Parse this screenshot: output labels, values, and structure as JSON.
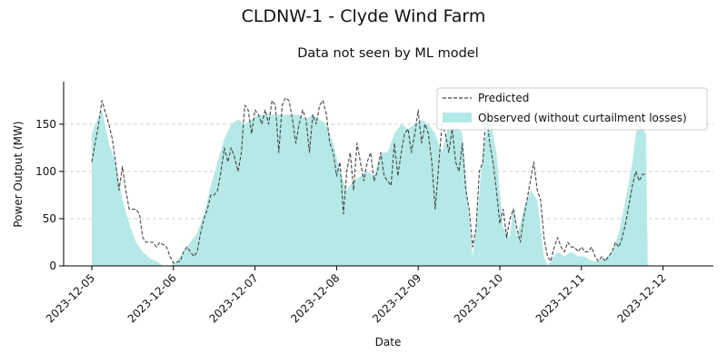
{
  "chart_data": {
    "type": "area",
    "suptitle": "CLDNW-1 - Clyde Wind Farm",
    "title": "Data not seen by ML model",
    "xlabel": "Date",
    "ylabel": "Power Output (MW)",
    "ylim": [
      0,
      195
    ],
    "yticks": [
      0,
      50,
      100,
      150
    ],
    "xticks": [
      "2023-12-05",
      "2023-12-06",
      "2023-12-07",
      "2023-12-08",
      "2023-12-09",
      "2023-12-10",
      "2023-12-11",
      "2023-12-12"
    ],
    "grid": "y, dashed",
    "legend_position": "top-right",
    "series": [
      {
        "name": "Predicted",
        "style": "dashed line",
        "color": "#444444",
        "points": [
          [
            "2023-12-05 00:00",
            110
          ],
          [
            "2023-12-05 02:00",
            150
          ],
          [
            "2023-12-05 03:00",
            175
          ],
          [
            "2023-12-05 05:00",
            150
          ],
          [
            "2023-12-05 06:00",
            135
          ],
          [
            "2023-12-05 07:00",
            110
          ],
          [
            "2023-12-05 08:00",
            80
          ],
          [
            "2023-12-05 09:00",
            105
          ],
          [
            "2023-12-05 10:00",
            80
          ],
          [
            "2023-12-05 11:00",
            60
          ],
          [
            "2023-12-05 12:00",
            60
          ],
          [
            "2023-12-05 13:00",
            60
          ],
          [
            "2023-12-05 14:00",
            55
          ],
          [
            "2023-12-05 15:00",
            30
          ],
          [
            "2023-12-05 16:00",
            25
          ],
          [
            "2023-12-05 18:00",
            25
          ],
          [
            "2023-12-05 19:00",
            20
          ],
          [
            "2023-12-05 20:00",
            25
          ],
          [
            "2023-12-05 22:00",
            20
          ],
          [
            "2023-12-05 23:00",
            10
          ],
          [
            "2023-12-06 00:00",
            3
          ],
          [
            "2023-12-06 02:00",
            5
          ],
          [
            "2023-12-06 03:00",
            15
          ],
          [
            "2023-12-06 04:00",
            20
          ],
          [
            "2023-12-06 05:00",
            15
          ],
          [
            "2023-12-06 06:00",
            10
          ],
          [
            "2023-12-06 07:00",
            15
          ],
          [
            "2023-12-06 08:00",
            35
          ],
          [
            "2023-12-06 09:00",
            50
          ],
          [
            "2023-12-06 10:00",
            60
          ],
          [
            "2023-12-06 11:00",
            75
          ],
          [
            "2023-12-06 12:00",
            75
          ],
          [
            "2023-12-06 13:00",
            80
          ],
          [
            "2023-12-06 14:00",
            100
          ],
          [
            "2023-12-06 15:00",
            125
          ],
          [
            "2023-12-06 16:00",
            110
          ],
          [
            "2023-12-06 17:00",
            125
          ],
          [
            "2023-12-06 18:00",
            115
          ],
          [
            "2023-12-06 19:00",
            100
          ],
          [
            "2023-12-06 20:00",
            120
          ],
          [
            "2023-12-06 21:00",
            170
          ],
          [
            "2023-12-06 22:00",
            165
          ],
          [
            "2023-12-06 23:00",
            140
          ],
          [
            "2023-12-07 00:00",
            165
          ],
          [
            "2023-12-07 01:00",
            160
          ],
          [
            "2023-12-07 02:00",
            150
          ],
          [
            "2023-12-07 03:00",
            165
          ],
          [
            "2023-12-07 04:00",
            150
          ],
          [
            "2023-12-07 05:00",
            175
          ],
          [
            "2023-12-07 06:00",
            170
          ],
          [
            "2023-12-07 07:00",
            120
          ],
          [
            "2023-12-07 08:00",
            170
          ],
          [
            "2023-12-07 09:00",
            178
          ],
          [
            "2023-12-07 10:00",
            175
          ],
          [
            "2023-12-07 11:00",
            155
          ],
          [
            "2023-12-07 12:00",
            130
          ],
          [
            "2023-12-07 13:00",
            150
          ],
          [
            "2023-12-07 14:00",
            165
          ],
          [
            "2023-12-07 15:00",
            155
          ],
          [
            "2023-12-07 16:00",
            120
          ],
          [
            "2023-12-07 17:00",
            160
          ],
          [
            "2023-12-07 18:00",
            150
          ],
          [
            "2023-12-07 19:00",
            170
          ],
          [
            "2023-12-07 20:00",
            175
          ],
          [
            "2023-12-07 21:00",
            160
          ],
          [
            "2023-12-07 22:00",
            130
          ],
          [
            "2023-12-07 23:00",
            120
          ],
          [
            "2023-12-08 00:00",
            95
          ],
          [
            "2023-12-08 01:00",
            110
          ],
          [
            "2023-12-08 02:00",
            55
          ],
          [
            "2023-12-08 03:00",
            100
          ],
          [
            "2023-12-08 04:00",
            120
          ],
          [
            "2023-12-08 05:00",
            80
          ],
          [
            "2023-12-08 06:00",
            130
          ],
          [
            "2023-12-08 07:00",
            110
          ],
          [
            "2023-12-08 08:00",
            90
          ],
          [
            "2023-12-08 09:00",
            110
          ],
          [
            "2023-12-08 10:00",
            120
          ],
          [
            "2023-12-08 11:00",
            90
          ],
          [
            "2023-12-08 12:00",
            100
          ],
          [
            "2023-12-08 13:00",
            120
          ],
          [
            "2023-12-08 14:00",
            95
          ],
          [
            "2023-12-08 15:00",
            90
          ],
          [
            "2023-12-08 16:00",
            85
          ],
          [
            "2023-12-08 17:00",
            130
          ],
          [
            "2023-12-08 18:00",
            95
          ],
          [
            "2023-12-08 19:00",
            120
          ],
          [
            "2023-12-08 20:00",
            140
          ],
          [
            "2023-12-08 21:00",
            145
          ],
          [
            "2023-12-08 22:00",
            120
          ],
          [
            "2023-12-08 23:00",
            140
          ],
          [
            "2023-12-09 00:00",
            165
          ],
          [
            "2023-12-09 01:00",
            130
          ],
          [
            "2023-12-09 02:00",
            150
          ],
          [
            "2023-12-09 03:00",
            140
          ],
          [
            "2023-12-09 04:00",
            110
          ],
          [
            "2023-12-09 05:00",
            60
          ],
          [
            "2023-12-09 06:00",
            105
          ],
          [
            "2023-12-09 07:00",
            150
          ],
          [
            "2023-12-09 08:00",
            140
          ],
          [
            "2023-12-09 09:00",
            120
          ],
          [
            "2023-12-09 10:00",
            145
          ],
          [
            "2023-12-09 11:00",
            110
          ],
          [
            "2023-12-09 12:00",
            100
          ],
          [
            "2023-12-09 13:00",
            130
          ],
          [
            "2023-12-09 14:00",
            80
          ],
          [
            "2023-12-09 15:00",
            60
          ],
          [
            "2023-12-09 16:00",
            20
          ],
          [
            "2023-12-09 17:00",
            40
          ],
          [
            "2023-12-09 18:00",
            100
          ],
          [
            "2023-12-09 19:00",
            110
          ],
          [
            "2023-12-09 20:00",
            165
          ],
          [
            "2023-12-09 21:00",
            130
          ],
          [
            "2023-12-09 22:00",
            110
          ],
          [
            "2023-12-09 23:00",
            80
          ],
          [
            "2023-12-10 00:00",
            45
          ],
          [
            "2023-12-10 01:00",
            60
          ],
          [
            "2023-12-10 02:00",
            30
          ],
          [
            "2023-12-10 03:00",
            50
          ],
          [
            "2023-12-10 04:00",
            60
          ],
          [
            "2023-12-10 05:00",
            40
          ],
          [
            "2023-12-10 06:00",
            25
          ],
          [
            "2023-12-10 07:00",
            50
          ],
          [
            "2023-12-10 08:00",
            70
          ],
          [
            "2023-12-10 09:00",
            90
          ],
          [
            "2023-12-10 10:00",
            110
          ],
          [
            "2023-12-10 11:00",
            80
          ],
          [
            "2023-12-10 12:00",
            70
          ],
          [
            "2023-12-10 13:00",
            30
          ],
          [
            "2023-12-10 14:00",
            10
          ],
          [
            "2023-12-10 15:00",
            5
          ],
          [
            "2023-12-10 16:00",
            20
          ],
          [
            "2023-12-10 17:00",
            30
          ],
          [
            "2023-12-10 18:00",
            20
          ],
          [
            "2023-12-10 19:00",
            15
          ],
          [
            "2023-12-10 20:00",
            25
          ],
          [
            "2023-12-10 21:00",
            20
          ],
          [
            "2023-12-10 22:00",
            20
          ],
          [
            "2023-12-10 23:00",
            15
          ],
          [
            "2023-12-11 00:00",
            20
          ],
          [
            "2023-12-11 01:00",
            15
          ],
          [
            "2023-12-11 02:00",
            15
          ],
          [
            "2023-12-11 03:00",
            20
          ],
          [
            "2023-12-11 04:00",
            10
          ],
          [
            "2023-12-11 05:00",
            5
          ],
          [
            "2023-12-11 06:00",
            10
          ],
          [
            "2023-12-11 07:00",
            5
          ],
          [
            "2023-12-11 08:00",
            10
          ],
          [
            "2023-12-11 09:00",
            15
          ],
          [
            "2023-12-11 10:00",
            25
          ],
          [
            "2023-12-11 11:00",
            20
          ],
          [
            "2023-12-11 12:00",
            30
          ],
          [
            "2023-12-11 13:00",
            45
          ],
          [
            "2023-12-11 14:00",
            65
          ],
          [
            "2023-12-11 15:00",
            85
          ],
          [
            "2023-12-11 16:00",
            100
          ],
          [
            "2023-12-11 17:00",
            90
          ],
          [
            "2023-12-11 18:00",
            97
          ],
          [
            "2023-12-11 19:00",
            97
          ]
        ]
      },
      {
        "name": "Observed (without curtailment losses)",
        "style": "filled area",
        "color": "#b5e9e7",
        "points": [
          [
            "2023-12-05 00:00",
            140
          ],
          [
            "2023-12-05 01:00",
            150
          ],
          [
            "2023-12-05 03:00",
            165
          ],
          [
            "2023-12-05 05:00",
            130
          ],
          [
            "2023-12-05 07:00",
            110
          ],
          [
            "2023-12-05 09:00",
            70
          ],
          [
            "2023-12-05 11:00",
            45
          ],
          [
            "2023-12-05 13:00",
            25
          ],
          [
            "2023-12-05 15:00",
            15
          ],
          [
            "2023-12-05 17:00",
            8
          ],
          [
            "2023-12-05 19:00",
            5
          ],
          [
            "2023-12-05 21:00",
            0
          ],
          [
            "2023-12-05 23:00",
            0
          ],
          [
            "2023-12-06 01:00",
            5
          ],
          [
            "2023-12-06 03:00",
            15
          ],
          [
            "2023-12-06 05:00",
            25
          ],
          [
            "2023-12-06 07:00",
            35
          ],
          [
            "2023-12-06 09:00",
            55
          ],
          [
            "2023-12-06 11:00",
            85
          ],
          [
            "2023-12-06 13:00",
            110
          ],
          [
            "2023-12-06 15:00",
            135
          ],
          [
            "2023-12-06 17:00",
            150
          ],
          [
            "2023-12-06 19:00",
            155
          ],
          [
            "2023-12-06 21:00",
            150
          ],
          [
            "2023-12-06 23:00",
            155
          ],
          [
            "2023-12-07 01:00",
            160
          ],
          [
            "2023-12-07 03:00",
            160
          ],
          [
            "2023-12-07 05:00",
            160
          ],
          [
            "2023-12-07 07:00",
            160
          ],
          [
            "2023-12-07 09:00",
            160
          ],
          [
            "2023-12-07 11:00",
            160
          ],
          [
            "2023-12-07 13:00",
            160
          ],
          [
            "2023-12-07 15:00",
            155
          ],
          [
            "2023-12-07 17:00",
            160
          ],
          [
            "2023-12-07 19:00",
            155
          ],
          [
            "2023-12-07 21:00",
            150
          ],
          [
            "2023-12-07 23:00",
            130
          ],
          [
            "2023-12-08 01:00",
            100
          ],
          [
            "2023-12-08 03:00",
            80
          ],
          [
            "2023-12-08 05:00",
            90
          ],
          [
            "2023-12-08 07:00",
            95
          ],
          [
            "2023-12-08 09:00",
            100
          ],
          [
            "2023-12-08 11:00",
            95
          ],
          [
            "2023-12-08 13:00",
            120
          ],
          [
            "2023-12-08 15:00",
            120
          ],
          [
            "2023-12-08 17:00",
            140
          ],
          [
            "2023-12-08 19:00",
            150
          ],
          [
            "2023-12-08 21:00",
            145
          ],
          [
            "2023-12-08 23:00",
            150
          ],
          [
            "2023-12-09 01:00",
            155
          ],
          [
            "2023-12-09 03:00",
            150
          ],
          [
            "2023-12-09 05:00",
            140
          ],
          [
            "2023-12-09 07:00",
            120
          ],
          [
            "2023-12-09 09:00",
            150
          ],
          [
            "2023-12-09 11:00",
            150
          ],
          [
            "2023-12-09 13:00",
            140
          ],
          [
            "2023-12-09 15:00",
            50
          ],
          [
            "2023-12-09 16:00",
            10
          ],
          [
            "2023-12-09 17:00",
            40
          ],
          [
            "2023-12-09 19:00",
            120
          ],
          [
            "2023-12-09 21:00",
            160
          ],
          [
            "2023-12-09 23:00",
            120
          ],
          [
            "2023-12-10 01:00",
            40
          ],
          [
            "2023-12-10 03:00",
            30
          ],
          [
            "2023-12-10 04:00",
            65
          ],
          [
            "2023-12-10 05:00",
            30
          ],
          [
            "2023-12-10 07:00",
            60
          ],
          [
            "2023-12-10 09:00",
            80
          ],
          [
            "2023-12-10 11:00",
            70
          ],
          [
            "2023-12-10 13:00",
            10
          ],
          [
            "2023-12-10 14:00",
            0
          ],
          [
            "2023-12-10 15:00",
            5
          ],
          [
            "2023-12-10 17:00",
            15
          ],
          [
            "2023-12-10 19:00",
            10
          ],
          [
            "2023-12-10 21:00",
            15
          ],
          [
            "2023-12-10 23:00",
            10
          ],
          [
            "2023-12-11 01:00",
            10
          ],
          [
            "2023-12-11 03:00",
            5
          ],
          [
            "2023-12-11 05:00",
            5
          ],
          [
            "2023-12-11 07:00",
            8
          ],
          [
            "2023-12-11 09:00",
            15
          ],
          [
            "2023-12-11 11:00",
            35
          ],
          [
            "2023-12-11 13:00",
            70
          ],
          [
            "2023-12-11 15:00",
            110
          ],
          [
            "2023-12-11 16:00",
            140
          ],
          [
            "2023-12-11 17:00",
            150
          ],
          [
            "2023-12-11 18:00",
            145
          ],
          [
            "2023-12-11 19:00",
            140
          ],
          [
            "2023-12-11 19:30",
            0
          ]
        ]
      }
    ]
  }
}
